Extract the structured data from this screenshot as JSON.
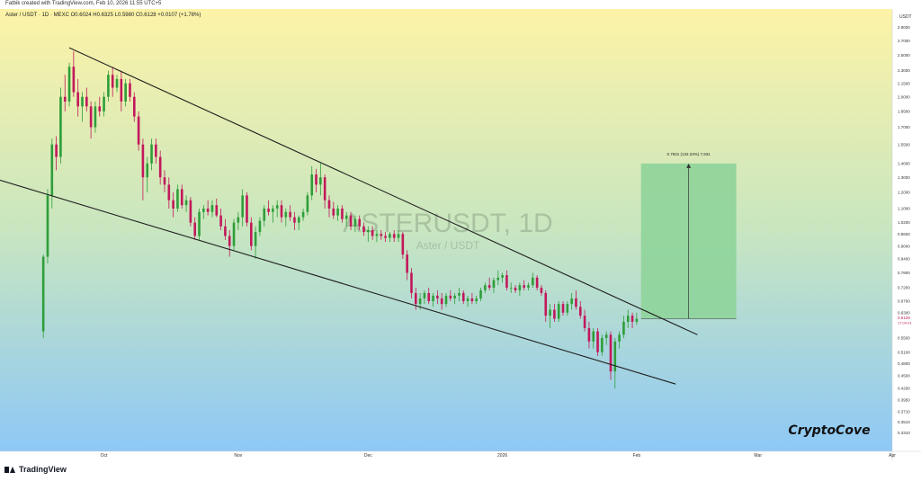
{
  "header": {
    "publisher": "Fatbik created with TradingView.com, Feb 10, 2026 11:55 UTC+5",
    "ohlc": "Aster / USDT · 1D · MEXC  O0.6024  H0.6325  L0.5980  C0.6128  +0.0107 (+1.78%)"
  },
  "watermark": {
    "symbol": "ASTERUSDT, 1D",
    "name": "Aster / USDT"
  },
  "brand": "CryptoCove",
  "footer": {
    "logo": "TradingView"
  },
  "colors": {
    "bg_top": "#fdf3a7",
    "bg_bottom": "#8ec8f6",
    "up": "#2e9e3a",
    "down": "#c2185b",
    "target_box": "#8fd49a"
  },
  "chart_data": {
    "type": "candlestick",
    "y_scale": "log",
    "ylim": [
      0.3,
      3.2
    ],
    "price_axis_label": "USDT",
    "y_ticks": [
      {
        "v": 2.9,
        "label": "2.9000"
      },
      {
        "v": 2.7,
        "label": "2.7000"
      },
      {
        "v": 2.5,
        "label": "2.5000"
      },
      {
        "v": 2.3,
        "label": "2.3000"
      },
      {
        "v": 2.15,
        "label": "2.1500"
      },
      {
        "v": 2.0,
        "label": "2.0000"
      },
      {
        "v": 1.85,
        "label": "1.8500"
      },
      {
        "v": 1.7,
        "label": "1.7000"
      },
      {
        "v": 1.55,
        "label": "1.5500"
      },
      {
        "v": 1.4,
        "label": "1.4000"
      },
      {
        "v": 1.3,
        "label": "1.3000"
      },
      {
        "v": 1.2,
        "label": "1.2000"
      },
      {
        "v": 1.1,
        "label": "1.1000"
      },
      {
        "v": 1.02,
        "label": "1.0200"
      },
      {
        "v": 0.96,
        "label": "0.9600"
      },
      {
        "v": 0.9,
        "label": "0.9000"
      },
      {
        "v": 0.84,
        "label": "0.8400"
      },
      {
        "v": 0.78,
        "label": "0.7800"
      },
      {
        "v": 0.72,
        "label": "0.7200"
      },
      {
        "v": 0.67,
        "label": "0.6700"
      },
      {
        "v": 0.63,
        "label": "0.6300"
      },
      {
        "v": 0.55,
        "label": "0.5500"
      },
      {
        "v": 0.51,
        "label": "0.5100"
      },
      {
        "v": 0.48,
        "label": "0.4800"
      },
      {
        "v": 0.45,
        "label": "0.4500"
      },
      {
        "v": 0.42,
        "label": "0.4200"
      },
      {
        "v": 0.395,
        "label": "0.3950"
      },
      {
        "v": 0.371,
        "label": "0.3710"
      },
      {
        "v": 0.351,
        "label": "0.3510"
      },
      {
        "v": 0.331,
        "label": "0.3310"
      }
    ],
    "last_price": {
      "v": 0.6128,
      "label": "0.6128",
      "countdown": "17:04:01"
    },
    "x_ticks": [
      {
        "t": "2025-10-01",
        "label": "Oct"
      },
      {
        "t": "2025-11-01",
        "label": "Nov"
      },
      {
        "t": "2025-12-01",
        "label": "Dec"
      },
      {
        "t": "2026-01-01",
        "label": "2026"
      },
      {
        "t": "2026-02-01",
        "label": "Feb"
      },
      {
        "t": "2026-03-01",
        "label": "Mar"
      },
      {
        "t": "2026-04-01",
        "label": "Apr"
      }
    ],
    "xlim": [
      "2025-09-07",
      "2026-04-01"
    ],
    "candles": [
      [
        "2025-09-17",
        0.57,
        0.86,
        0.55,
        0.85
      ],
      [
        "2025-09-18",
        0.85,
        1.22,
        0.82,
        1.18
      ],
      [
        "2025-09-19",
        1.18,
        1.6,
        1.1,
        1.55
      ],
      [
        "2025-09-20",
        1.55,
        1.62,
        1.35,
        1.45
      ],
      [
        "2025-09-21",
        1.45,
        2.1,
        1.4,
        2.0
      ],
      [
        "2025-09-22",
        2.0,
        2.25,
        1.85,
        1.95
      ],
      [
        "2025-09-23",
        1.95,
        2.4,
        1.9,
        2.35
      ],
      [
        "2025-09-24",
        2.35,
        2.55,
        2.0,
        2.05
      ],
      [
        "2025-09-25",
        2.05,
        2.2,
        1.8,
        1.9
      ],
      [
        "2025-09-26",
        1.9,
        2.05,
        1.75,
        2.0
      ],
      [
        "2025-09-27",
        2.0,
        2.1,
        1.85,
        1.9
      ],
      [
        "2025-09-28",
        1.9,
        1.95,
        1.6,
        1.7
      ],
      [
        "2025-09-29",
        1.7,
        1.95,
        1.65,
        1.9
      ],
      [
        "2025-09-30",
        1.9,
        2.0,
        1.8,
        1.85
      ],
      [
        "2025-10-01",
        1.85,
        2.05,
        1.8,
        2.0
      ],
      [
        "2025-10-02",
        2.0,
        2.3,
        1.95,
        2.25
      ],
      [
        "2025-10-03",
        2.25,
        2.35,
        2.0,
        2.1
      ],
      [
        "2025-10-04",
        2.1,
        2.25,
        2.05,
        2.2
      ],
      [
        "2025-10-05",
        2.2,
        2.3,
        1.85,
        1.95
      ],
      [
        "2025-10-06",
        1.95,
        2.2,
        1.9,
        2.15
      ],
      [
        "2025-10-07",
        2.15,
        2.2,
        1.95,
        2.0
      ],
      [
        "2025-10-08",
        2.0,
        2.05,
        1.75,
        1.8
      ],
      [
        "2025-10-09",
        1.8,
        1.85,
        1.5,
        1.55
      ],
      [
        "2025-10-10",
        1.55,
        1.6,
        1.15,
        1.3
      ],
      [
        "2025-10-11",
        1.3,
        1.45,
        1.2,
        1.4
      ],
      [
        "2025-10-12",
        1.4,
        1.6,
        1.35,
        1.55
      ],
      [
        "2025-10-13",
        1.55,
        1.6,
        1.4,
        1.45
      ],
      [
        "2025-10-14",
        1.45,
        1.5,
        1.25,
        1.3
      ],
      [
        "2025-10-15",
        1.3,
        1.35,
        1.2,
        1.25
      ],
      [
        "2025-10-16",
        1.25,
        1.3,
        1.1,
        1.15
      ],
      [
        "2025-10-17",
        1.15,
        1.2,
        1.05,
        1.1
      ],
      [
        "2025-10-18",
        1.1,
        1.25,
        1.08,
        1.22
      ],
      [
        "2025-10-19",
        1.22,
        1.25,
        1.1,
        1.12
      ],
      [
        "2025-10-20",
        1.12,
        1.18,
        1.08,
        1.15
      ],
      [
        "2025-10-21",
        1.15,
        1.17,
        1.0,
        1.02
      ],
      [
        "2025-10-22",
        1.02,
        1.05,
        0.93,
        0.95
      ],
      [
        "2025-10-23",
        0.95,
        1.1,
        0.93,
        1.08
      ],
      [
        "2025-10-24",
        1.08,
        1.12,
        1.04,
        1.1
      ],
      [
        "2025-10-25",
        1.1,
        1.15,
        1.06,
        1.08
      ],
      [
        "2025-10-26",
        1.08,
        1.15,
        1.05,
        1.12
      ],
      [
        "2025-10-27",
        1.12,
        1.16,
        1.05,
        1.06
      ],
      [
        "2025-10-28",
        1.06,
        1.1,
        0.98,
        1.0
      ],
      [
        "2025-10-29",
        1.0,
        1.04,
        0.93,
        0.95
      ],
      [
        "2025-10-30",
        0.95,
        0.98,
        0.85,
        0.9
      ],
      [
        "2025-10-31",
        0.9,
        1.04,
        0.88,
        1.02
      ],
      [
        "2025-11-01",
        1.02,
        1.08,
        0.98,
        1.05
      ],
      [
        "2025-11-02",
        1.05,
        1.22,
        1.0,
        1.18
      ],
      [
        "2025-11-03",
        1.18,
        1.2,
        1.0,
        1.02
      ],
      [
        "2025-11-04",
        1.02,
        1.05,
        0.88,
        0.9
      ],
      [
        "2025-11-05",
        0.9,
        1.0,
        0.84,
        0.97
      ],
      [
        "2025-11-06",
        0.97,
        1.05,
        0.95,
        1.03
      ],
      [
        "2025-11-07",
        1.03,
        1.12,
        1.0,
        1.1
      ],
      [
        "2025-11-08",
        1.1,
        1.15,
        1.06,
        1.08
      ],
      [
        "2025-11-09",
        1.08,
        1.12,
        1.02,
        1.1
      ],
      [
        "2025-11-10",
        1.1,
        1.15,
        1.05,
        1.12
      ],
      [
        "2025-11-11",
        1.12,
        1.15,
        1.02,
        1.05
      ],
      [
        "2025-11-12",
        1.05,
        1.1,
        1.0,
        1.08
      ],
      [
        "2025-11-13",
        1.08,
        1.12,
        1.03,
        1.05
      ],
      [
        "2025-11-14",
        1.05,
        1.08,
        0.98,
        1.02
      ],
      [
        "2025-11-15",
        1.02,
        1.06,
        0.98,
        1.05
      ],
      [
        "2025-11-16",
        1.05,
        1.1,
        1.03,
        1.08
      ],
      [
        "2025-11-17",
        1.08,
        1.2,
        1.06,
        1.18
      ],
      [
        "2025-11-18",
        1.18,
        1.38,
        1.15,
        1.32
      ],
      [
        "2025-11-19",
        1.32,
        1.36,
        1.2,
        1.25
      ],
      [
        "2025-11-20",
        1.25,
        1.4,
        1.18,
        1.3
      ],
      [
        "2025-11-21",
        1.3,
        1.32,
        1.1,
        1.15
      ],
      [
        "2025-11-22",
        1.15,
        1.18,
        1.05,
        1.1
      ],
      [
        "2025-11-23",
        1.1,
        1.14,
        1.04,
        1.06
      ],
      [
        "2025-11-24",
        1.06,
        1.12,
        1.03,
        1.1
      ],
      [
        "2025-11-25",
        1.1,
        1.12,
        1.02,
        1.04
      ],
      [
        "2025-11-26",
        1.04,
        1.08,
        1.0,
        1.06
      ],
      [
        "2025-11-27",
        1.06,
        1.08,
        0.98,
        1.0
      ],
      [
        "2025-11-28",
        1.0,
        1.06,
        0.97,
        1.04
      ],
      [
        "2025-11-29",
        1.04,
        1.06,
        0.98,
        1.0
      ],
      [
        "2025-11-30",
        1.0,
        1.02,
        0.95,
        0.97
      ],
      [
        "2025-12-01",
        0.97,
        1.0,
        0.92,
        0.98
      ],
      [
        "2025-12-02",
        0.98,
        1.0,
        0.93,
        0.95
      ],
      [
        "2025-12-03",
        0.95,
        0.98,
        0.92,
        0.96
      ],
      [
        "2025-12-04",
        0.96,
        0.98,
        0.93,
        0.95
      ],
      [
        "2025-12-05",
        0.95,
        0.97,
        0.92,
        0.94
      ],
      [
        "2025-12-06",
        0.94,
        0.97,
        0.92,
        0.96
      ],
      [
        "2025-12-07",
        0.96,
        0.98,
        0.92,
        0.94
      ],
      [
        "2025-12-08",
        0.94,
        0.98,
        0.92,
        0.96
      ],
      [
        "2025-12-09",
        0.96,
        0.97,
        0.84,
        0.86
      ],
      [
        "2025-12-10",
        0.86,
        0.88,
        0.75,
        0.78
      ],
      [
        "2025-12-11",
        0.78,
        0.8,
        0.68,
        0.7
      ],
      [
        "2025-12-12",
        0.7,
        0.72,
        0.64,
        0.66
      ],
      [
        "2025-12-13",
        0.66,
        0.7,
        0.64,
        0.68
      ],
      [
        "2025-12-14",
        0.68,
        0.71,
        0.66,
        0.7
      ],
      [
        "2025-12-15",
        0.7,
        0.72,
        0.66,
        0.67
      ],
      [
        "2025-12-16",
        0.67,
        0.7,
        0.65,
        0.69
      ],
      [
        "2025-12-17",
        0.69,
        0.71,
        0.66,
        0.68
      ],
      [
        "2025-12-18",
        0.68,
        0.7,
        0.64,
        0.66
      ],
      [
        "2025-12-19",
        0.66,
        0.7,
        0.65,
        0.69
      ],
      [
        "2025-12-20",
        0.69,
        0.71,
        0.67,
        0.68
      ],
      [
        "2025-12-21",
        0.68,
        0.7,
        0.66,
        0.69
      ],
      [
        "2025-12-22",
        0.69,
        0.72,
        0.67,
        0.7
      ],
      [
        "2025-12-23",
        0.7,
        0.71,
        0.66,
        0.67
      ],
      [
        "2025-12-24",
        0.67,
        0.69,
        0.65,
        0.68
      ],
      [
        "2025-12-25",
        0.68,
        0.7,
        0.66,
        0.67
      ],
      [
        "2025-12-26",
        0.67,
        0.69,
        0.66,
        0.68
      ],
      [
        "2025-12-27",
        0.68,
        0.72,
        0.67,
        0.71
      ],
      [
        "2025-12-28",
        0.71,
        0.74,
        0.7,
        0.73
      ],
      [
        "2025-12-29",
        0.73,
        0.76,
        0.71,
        0.72
      ],
      [
        "2025-12-30",
        0.72,
        0.76,
        0.7,
        0.75
      ],
      [
        "2025-12-31",
        0.75,
        0.79,
        0.73,
        0.76
      ],
      [
        "2026-01-01",
        0.76,
        0.78,
        0.74,
        0.77
      ],
      [
        "2026-01-02",
        0.77,
        0.79,
        0.71,
        0.72
      ],
      [
        "2026-01-03",
        0.72,
        0.74,
        0.7,
        0.72
      ],
      [
        "2026-01-04",
        0.72,
        0.73,
        0.7,
        0.71
      ],
      [
        "2026-01-05",
        0.71,
        0.74,
        0.69,
        0.73
      ],
      [
        "2026-01-06",
        0.73,
        0.75,
        0.71,
        0.72
      ],
      [
        "2026-01-07",
        0.72,
        0.74,
        0.71,
        0.73
      ],
      [
        "2026-01-08",
        0.73,
        0.78,
        0.72,
        0.76
      ],
      [
        "2026-01-09",
        0.76,
        0.77,
        0.71,
        0.72
      ],
      [
        "2026-01-10",
        0.72,
        0.73,
        0.69,
        0.7
      ],
      [
        "2026-01-11",
        0.7,
        0.71,
        0.6,
        0.62
      ],
      [
        "2026-01-12",
        0.62,
        0.66,
        0.58,
        0.64
      ],
      [
        "2026-01-13",
        0.64,
        0.66,
        0.6,
        0.61
      ],
      [
        "2026-01-14",
        0.61,
        0.67,
        0.6,
        0.66
      ],
      [
        "2026-01-15",
        0.66,
        0.67,
        0.62,
        0.63
      ],
      [
        "2026-01-16",
        0.63,
        0.67,
        0.62,
        0.66
      ],
      [
        "2026-01-17",
        0.66,
        0.7,
        0.64,
        0.68
      ],
      [
        "2026-01-18",
        0.68,
        0.71,
        0.64,
        0.65
      ],
      [
        "2026-01-19",
        0.65,
        0.67,
        0.61,
        0.62
      ],
      [
        "2026-01-20",
        0.62,
        0.64,
        0.57,
        0.58
      ],
      [
        "2026-01-21",
        0.58,
        0.6,
        0.52,
        0.54
      ],
      [
        "2026-01-22",
        0.54,
        0.58,
        0.52,
        0.57
      ],
      [
        "2026-01-23",
        0.57,
        0.58,
        0.5,
        0.51
      ],
      [
        "2026-01-24",
        0.51,
        0.56,
        0.5,
        0.55
      ],
      [
        "2026-01-25",
        0.55,
        0.57,
        0.53,
        0.56
      ],
      [
        "2026-01-26",
        0.56,
        0.57,
        0.44,
        0.46
      ],
      [
        "2026-01-27",
        0.46,
        0.55,
        0.42,
        0.54
      ],
      [
        "2026-01-28",
        0.54,
        0.57,
        0.52,
        0.56
      ],
      [
        "2026-01-29",
        0.56,
        0.62,
        0.55,
        0.6
      ],
      [
        "2026-01-30",
        0.6,
        0.64,
        0.58,
        0.62
      ],
      [
        "2026-01-31",
        0.62,
        0.63,
        0.58,
        0.6
      ],
      [
        "2026-02-01",
        0.6,
        0.63,
        0.59,
        0.61
      ]
    ],
    "trendlines": [
      {
        "from": [
          "2025-09-23",
          2.6
        ],
        "to": [
          "2026-02-15",
          0.56
        ]
      },
      {
        "from": [
          "2025-09-07",
          1.28
        ],
        "to": [
          "2026-02-10",
          0.43
        ]
      }
    ],
    "target": {
      "x0": "2026-02-02",
      "x1": "2026-02-24",
      "y0": 0.61,
      "y1": 1.4,
      "label": "0.7931 (132.23%) 7,931"
    }
  }
}
